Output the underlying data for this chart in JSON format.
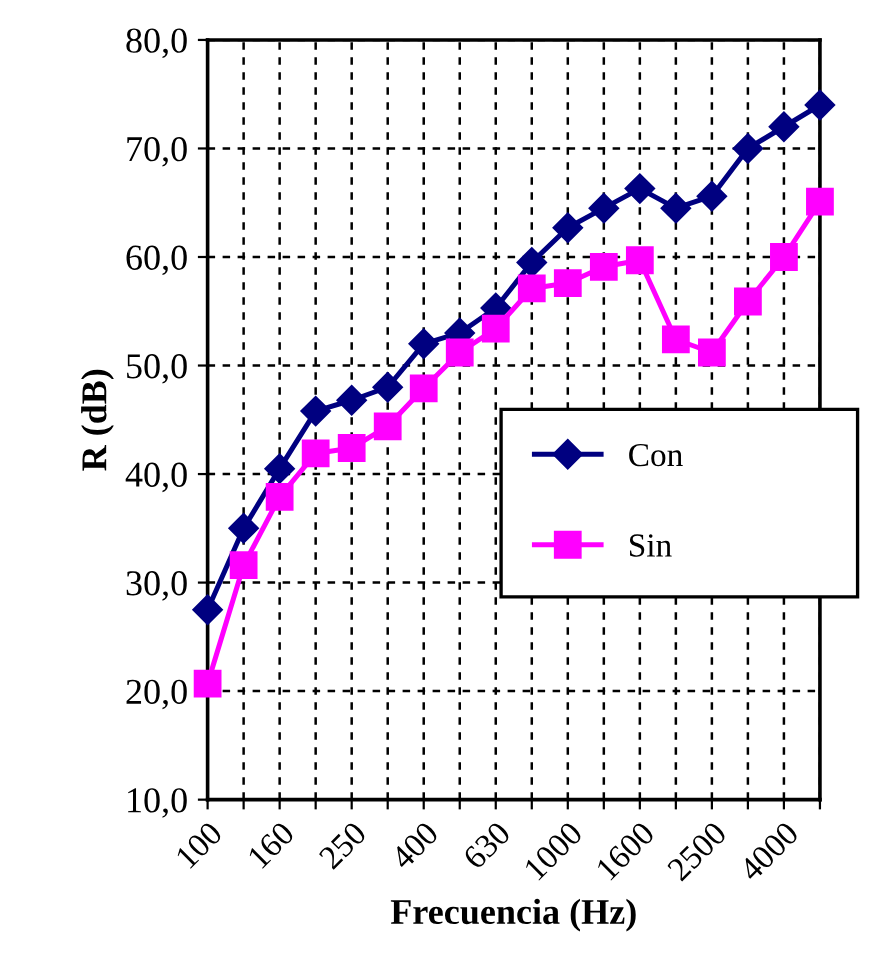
{
  "chart_data": {
    "type": "line",
    "xlabel": "Frecuencia (Hz)",
    "ylabel": "R (dB)",
    "categories": [
      "100",
      null,
      "160",
      null,
      "250",
      null,
      "400",
      null,
      "630",
      null,
      "1000",
      null,
      "1600",
      null,
      "2500",
      null,
      "4000",
      null
    ],
    "series": [
      {
        "name": "Con",
        "color": "#000080",
        "marker": "diamond",
        "values": [
          27.5,
          35,
          40.5,
          45.8,
          46.8,
          48,
          52,
          53,
          55.3,
          59.5,
          62.7,
          64.5,
          66.3,
          64.5,
          65.6,
          70,
          72,
          74
        ]
      },
      {
        "name": "Sin",
        "color": "#ff00ff",
        "marker": "square",
        "values": [
          20.7,
          31.6,
          37.9,
          41.9,
          42.4,
          44.4,
          47.9,
          51.2,
          53.4,
          57.1,
          57.6,
          59.1,
          59.7,
          52.4,
          51.2,
          55.9,
          60,
          65.1
        ]
      }
    ],
    "ylim": [
      10,
      80
    ],
    "yticks": [
      {
        "value": 10,
        "label": "10,0"
      },
      {
        "value": 20,
        "label": "20,0"
      },
      {
        "value": 30,
        "label": "30,0"
      },
      {
        "value": 40,
        "label": "40,0"
      },
      {
        "value": 50,
        "label": "50,0"
      },
      {
        "value": 60,
        "label": "60,0"
      },
      {
        "value": 70,
        "label": "70,0"
      },
      {
        "value": 80,
        "label": "80,0"
      }
    ],
    "grid": true,
    "legend": "right",
    "line_style": "solid"
  }
}
